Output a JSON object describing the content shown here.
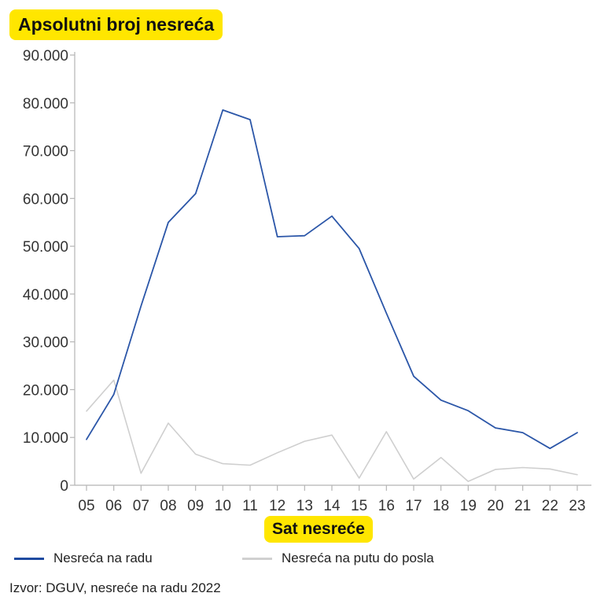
{
  "chart_data": {
    "type": "line",
    "title": "Apsolutni broj nesreća",
    "xlabel": "Sat nesreće",
    "ylabel": "",
    "categories": [
      "05",
      "06",
      "07",
      "08",
      "09",
      "10",
      "11",
      "12",
      "13",
      "14",
      "15",
      "16",
      "17",
      "18",
      "19",
      "20",
      "21",
      "22",
      "23"
    ],
    "ylim": [
      0,
      90000
    ],
    "yticks": [
      0,
      10000,
      20000,
      30000,
      40000,
      50000,
      60000,
      70000,
      80000,
      90000
    ],
    "ytick_labels": [
      "0",
      "10.000",
      "20.000",
      "30.000",
      "40.000",
      "50.000",
      "60.000",
      "70.000",
      "80.000",
      "90.000"
    ],
    "series": [
      {
        "name": "Nesreća na radu",
        "color": "#2b56a8",
        "values": [
          9600,
          19000,
          37500,
          55000,
          61000,
          78500,
          76500,
          52000,
          52200,
          56300,
          49500,
          36000,
          22800,
          17800,
          15600,
          12000,
          11000,
          7700,
          11000
        ]
      },
      {
        "name": "Nesreća na putu do posla",
        "color": "#cfcfcf",
        "values": [
          15500,
          22000,
          2500,
          13000,
          6500,
          4500,
          4200,
          6800,
          9200,
          10500,
          1500,
          11200,
          1300,
          5800,
          800,
          3300,
          3700,
          3400,
          2200
        ]
      }
    ],
    "grid": false,
    "legend_position": "bottom-left"
  },
  "source": "Izvor: DGUV, nesreće na radu 2022"
}
